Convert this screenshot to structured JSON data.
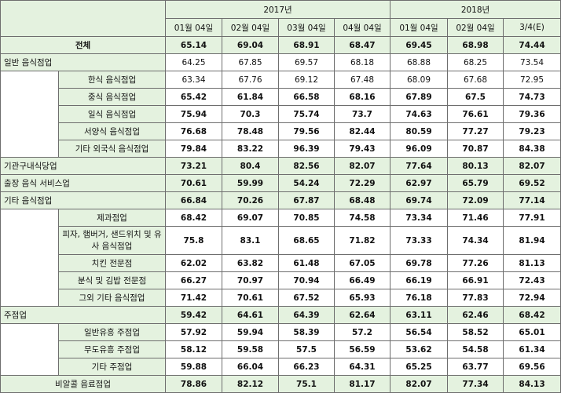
{
  "header": {
    "years": [
      "2017년",
      "2018년"
    ],
    "periods": [
      "01월 04일",
      "02월 04일",
      "03월 04일",
      "04월 04일",
      "01월 04일",
      "02월 04일",
      "3/4(E)"
    ]
  },
  "rows": [
    {
      "label": "전체",
      "values": [
        "65.14",
        "69.04",
        "68.91",
        "68.47",
        "69.45",
        "68.98",
        "74.44"
      ]
    },
    {
      "label": "일반 음식점업",
      "values": [
        "64.25",
        "67.85",
        "69.57",
        "68.18",
        "68.88",
        "68.25",
        "73.54"
      ]
    },
    {
      "label": "한식 음식점업",
      "values": [
        "63.34",
        "67.76",
        "69.12",
        "67.48",
        "68.09",
        "67.68",
        "72.95"
      ]
    },
    {
      "label": "중식 음식점업",
      "values": [
        "65.42",
        "61.84",
        "66.58",
        "68.16",
        "67.89",
        "67.5",
        "74.73"
      ]
    },
    {
      "label": "일식 음식점업",
      "values": [
        "75.94",
        "70.3",
        "75.74",
        "73.7",
        "74.63",
        "76.61",
        "79.36"
      ]
    },
    {
      "label": "서양식 음식점업",
      "values": [
        "76.68",
        "78.48",
        "79.56",
        "82.44",
        "80.59",
        "77.27",
        "79.23"
      ]
    },
    {
      "label": "기타 외국식 음식점업",
      "values": [
        "79.84",
        "83.22",
        "96.39",
        "79.43",
        "96.09",
        "70.87",
        "84.38"
      ]
    },
    {
      "label": "기관구내식당업",
      "values": [
        "73.21",
        "80.4",
        "82.56",
        "82.07",
        "77.64",
        "80.13",
        "82.07"
      ]
    },
    {
      "label": "출장 음식 서비스업",
      "values": [
        "70.61",
        "59.99",
        "54.24",
        "72.29",
        "62.97",
        "65.79",
        "69.52"
      ]
    },
    {
      "label": "기타 음식점업",
      "values": [
        "66.84",
        "70.26",
        "67.87",
        "68.48",
        "69.74",
        "72.09",
        "77.14"
      ]
    },
    {
      "label": "제과점업",
      "values": [
        "68.42",
        "69.07",
        "70.85",
        "74.58",
        "73.34",
        "71.46",
        "77.91"
      ]
    },
    {
      "label": "피자, 햄버거, 샌드위치 및 유사 음식점업",
      "values": [
        "75.8",
        "83.1",
        "68.65",
        "71.82",
        "73.33",
        "74.34",
        "81.94"
      ]
    },
    {
      "label": "치킨 전문점",
      "values": [
        "62.02",
        "63.82",
        "61.48",
        "67.05",
        "69.78",
        "77.26",
        "81.13"
      ]
    },
    {
      "label": "분식 및 김밥 전문점",
      "values": [
        "66.27",
        "70.97",
        "70.94",
        "66.49",
        "66.19",
        "66.91",
        "72.43"
      ]
    },
    {
      "label": "그외 기타 음식점업",
      "values": [
        "71.42",
        "70.61",
        "67.52",
        "65.93",
        "76.18",
        "77.83",
        "72.94"
      ]
    },
    {
      "label": "주점업",
      "values": [
        "59.42",
        "64.61",
        "64.39",
        "62.64",
        "63.11",
        "62.46",
        "68.42"
      ]
    },
    {
      "label": "일반유흥 주점업",
      "values": [
        "57.92",
        "59.94",
        "58.39",
        "57.2",
        "56.54",
        "58.52",
        "65.01"
      ]
    },
    {
      "label": "무도유흥 주점업",
      "values": [
        "58.12",
        "59.58",
        "57.5",
        "56.59",
        "53.62",
        "54.58",
        "61.34"
      ]
    },
    {
      "label": "기타 주점업",
      "values": [
        "59.88",
        "66.04",
        "66.23",
        "64.31",
        "65.25",
        "63.77",
        "69.56"
      ]
    },
    {
      "label": "비알콜 음료점업",
      "values": [
        "78.86",
        "82.12",
        "75.1",
        "81.17",
        "82.07",
        "77.34",
        "84.13"
      ]
    }
  ]
}
